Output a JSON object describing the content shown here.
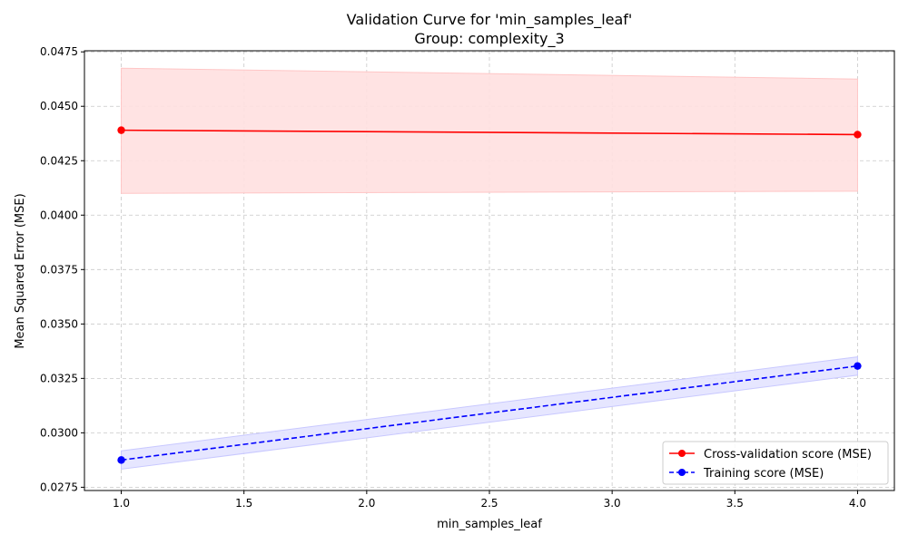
{
  "chart_data": {
    "type": "line",
    "title": "Validation Curve for 'min_samples_leaf'",
    "subtitle": "Group: complexity_3",
    "xlabel": "min_samples_leaf",
    "ylabel": "Mean Squared Error (MSE)",
    "xlim": [
      0.85,
      4.15
    ],
    "ylim": [
      0.02735,
      0.04755
    ],
    "x_ticks": [
      1.0,
      1.5,
      2.0,
      2.5,
      3.0,
      3.5,
      4.0
    ],
    "x_tick_labels": [
      "1.0",
      "1.5",
      "2.0",
      "2.5",
      "3.0",
      "3.5",
      "4.0"
    ],
    "y_ticks": [
      0.0275,
      0.03,
      0.0325,
      0.035,
      0.0375,
      0.04,
      0.0425,
      0.045,
      0.0475
    ],
    "y_tick_labels": [
      "0.0275",
      "0.0300",
      "0.0325",
      "0.0350",
      "0.0375",
      "0.0400",
      "0.0425",
      "0.0450",
      "0.0475"
    ],
    "grid": true,
    "legend_position": "bottom-right",
    "series": [
      {
        "name": "Cross-validation score (MSE)",
        "x": [
          1.0,
          4.0
        ],
        "y": [
          0.0439,
          0.0437
        ],
        "band_lower": [
          0.041,
          0.0411
        ],
        "band_upper": [
          0.04675,
          0.04625
        ],
        "color": "#ff0000",
        "band_color": "#ffe0e0",
        "band_edge_color": "#ffc6c6",
        "linestyle": "solid",
        "marker": "circle"
      },
      {
        "name": "Training score (MSE)",
        "x": [
          1.0,
          4.0
        ],
        "y": [
          0.02875,
          0.03307
        ],
        "band_lower": [
          0.02833,
          0.03265
        ],
        "band_upper": [
          0.02917,
          0.03349
        ],
        "color": "#0000ff",
        "band_color": "#e3e3ff",
        "band_edge_color": "#c8c8ff",
        "linestyle": "dashed",
        "marker": "circle"
      }
    ]
  }
}
